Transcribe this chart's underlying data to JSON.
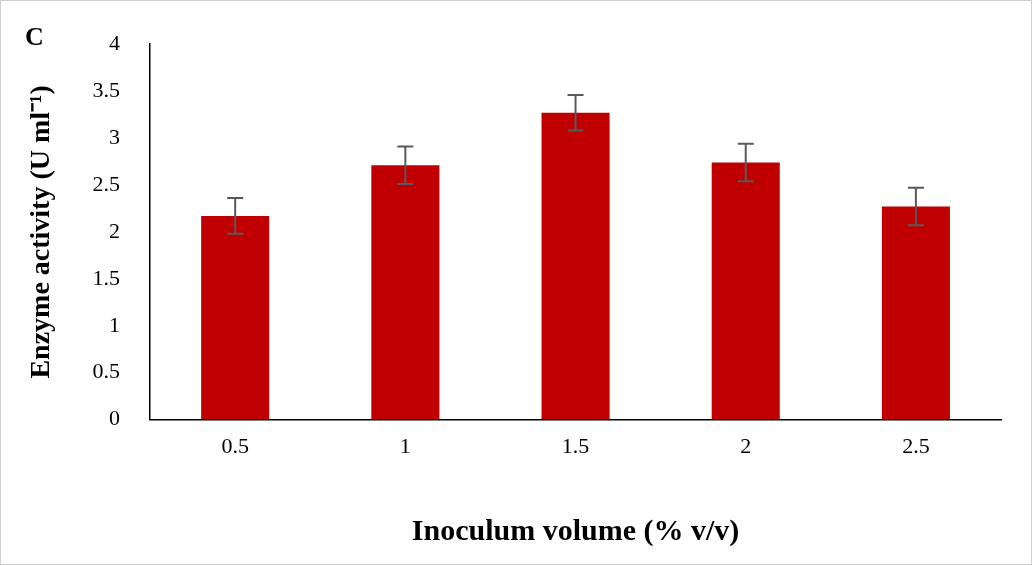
{
  "chart_data": {
    "type": "bar",
    "categories": [
      "0.5",
      "1",
      "1.5",
      "2",
      "2.5"
    ],
    "values": [
      2.17,
      2.71,
      3.27,
      2.74,
      2.27
    ],
    "errors": [
      0.19,
      0.2,
      0.19,
      0.2,
      0.2
    ],
    "color": "#c00000",
    "xlabel": "Inoculum volume (% v/v)",
    "ylabel": "Enzyme activity (U ml⁻¹)",
    "ylim": [
      0,
      4
    ],
    "yticks": [
      0,
      0.5,
      1,
      1.5,
      2,
      2.5,
      3,
      3.5,
      4
    ],
    "annotations": [
      "C"
    ],
    "grid": false,
    "legend": false
  }
}
